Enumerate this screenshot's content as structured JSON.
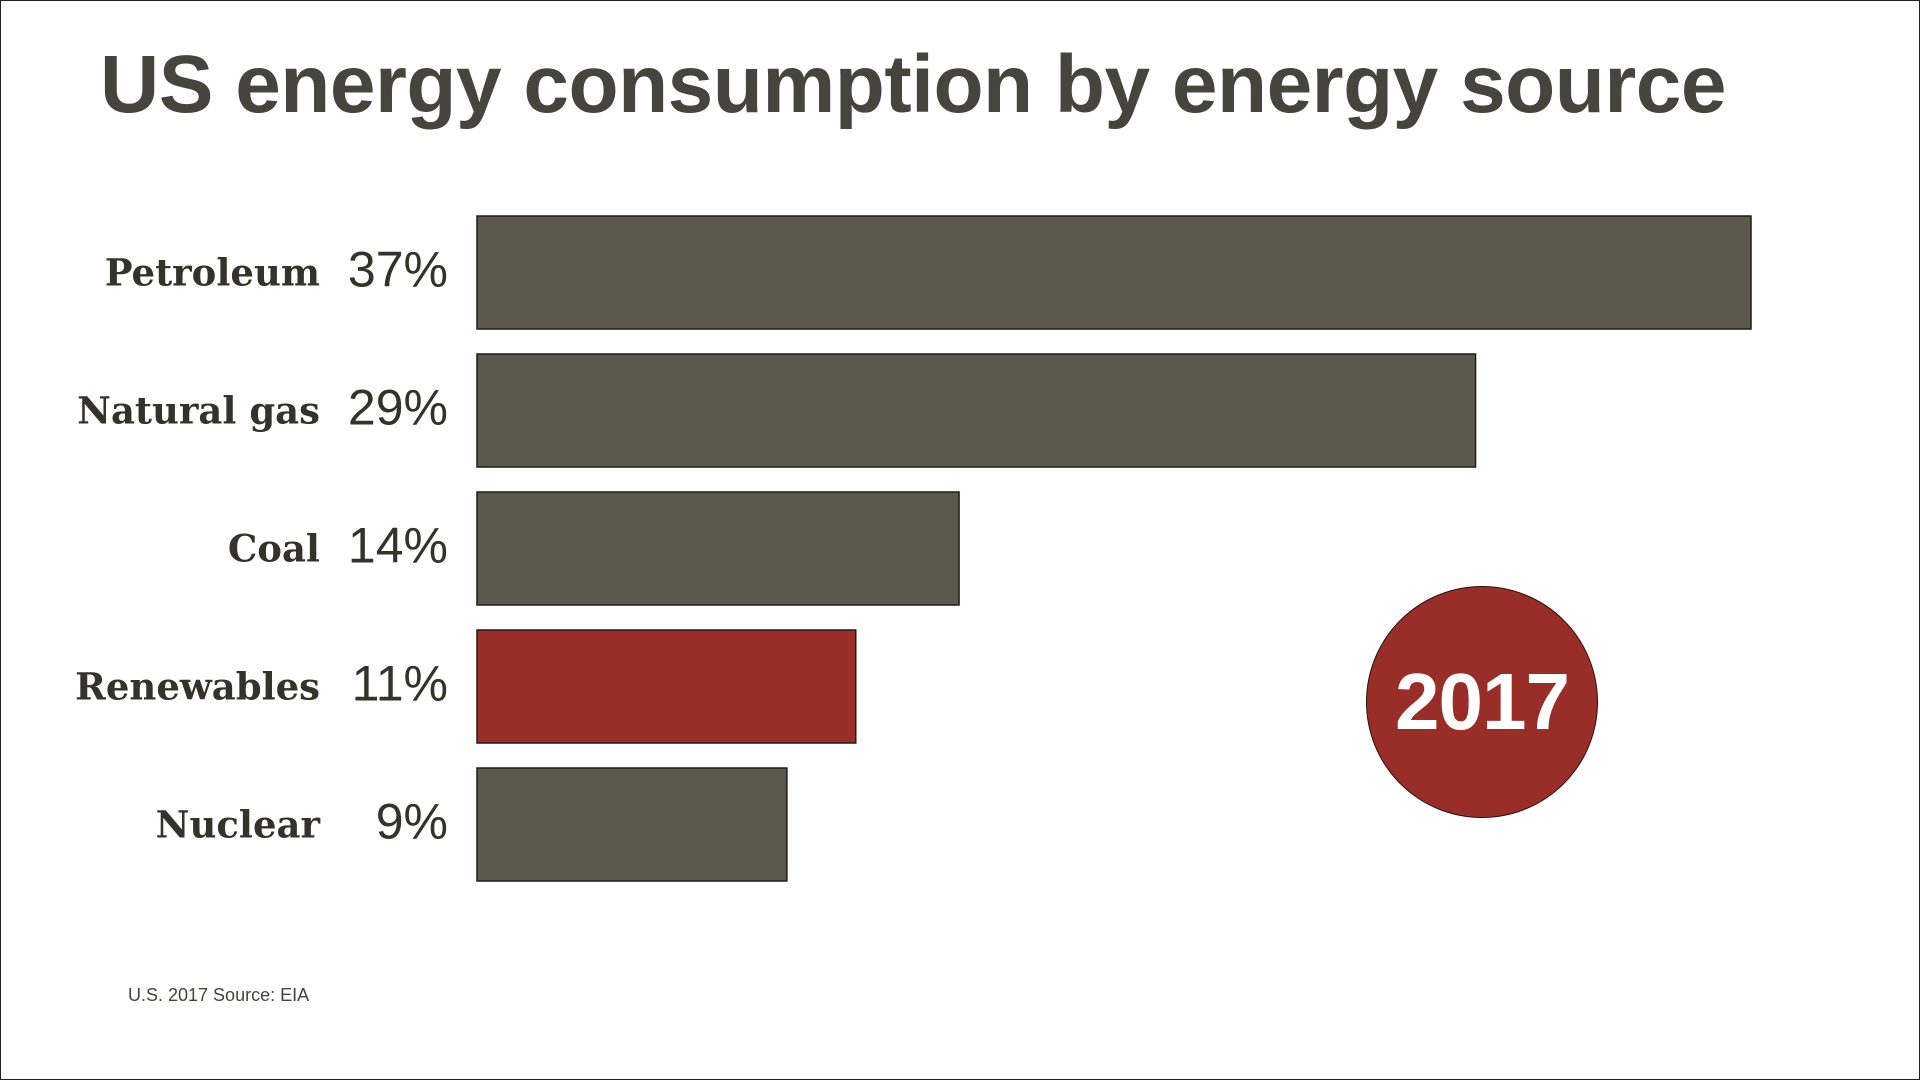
{
  "title": "US energy consumption by energy source",
  "source_note": "U.S. 2017 Source: EIA",
  "badge": {
    "year": "2017",
    "color": "#992e29"
  },
  "colors": {
    "bar_default": "#5c584d",
    "bar_highlight": "#992e29",
    "text_dark": "#33332a",
    "title": "#45443d"
  },
  "chart_data": {
    "type": "bar",
    "orientation": "horizontal",
    "categories": [
      "Petroleum",
      "Natural gas",
      "Coal",
      "Renewables",
      "Nuclear"
    ],
    "values": [
      37,
      29,
      14,
      11,
      9
    ],
    "value_labels": [
      "37%",
      "29%",
      "14%",
      "11%",
      "9%"
    ],
    "highlight": "Renewables",
    "xlim": [
      0,
      37
    ],
    "unit": "%",
    "grid": false,
    "legend": "none"
  }
}
